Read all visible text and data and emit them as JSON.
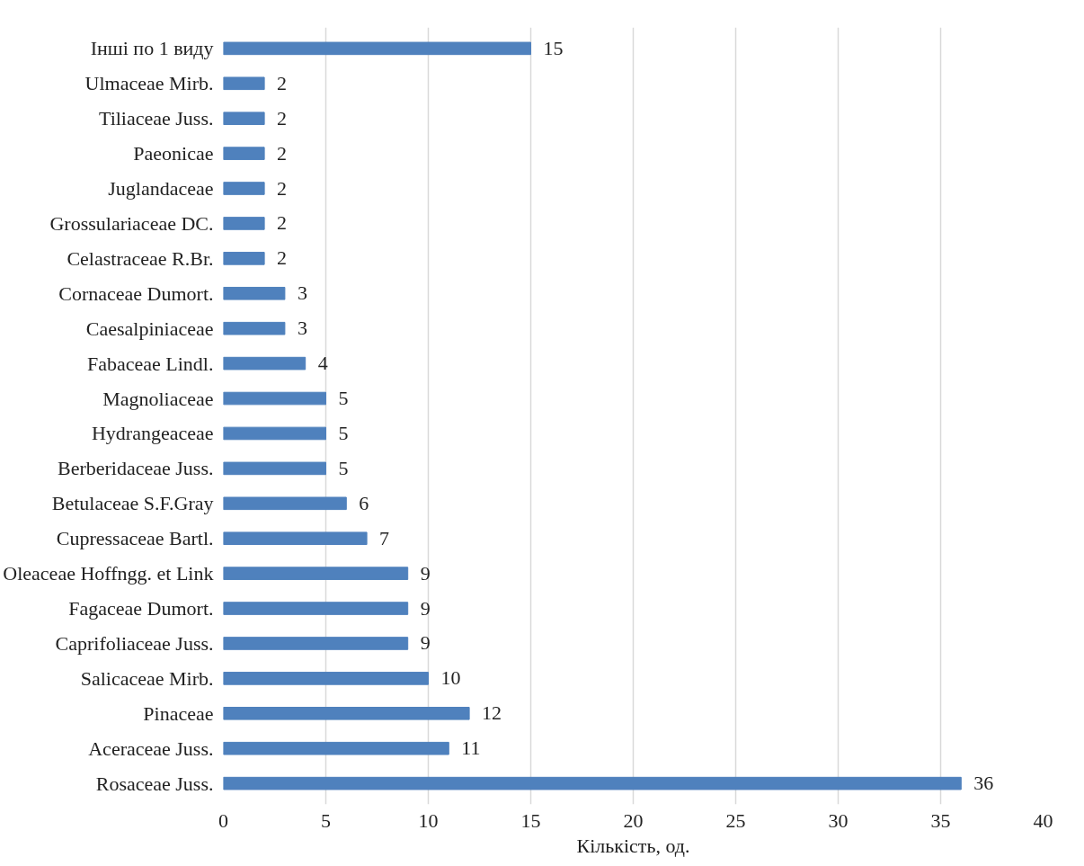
{
  "chart_data": {
    "type": "bar",
    "orientation": "horizontal",
    "xlabel": "Кількість, од.",
    "categories": [
      "Інші по 1 виду",
      "Ulmaceae Mirb.",
      "Tiliaceae Juss.",
      "Paeonicae",
      "Juglandaceae",
      "Grossulariaceae DC.",
      "Celastraceae R.Br.",
      "Cornaceae Dumort.",
      "Caesalpiniaceae",
      "Fabaceae Lindl.",
      "Magnoliaceae",
      "Hydrangeaceae",
      "Berberidaceae Juss.",
      "Betulaceae S.F.Gray",
      "Cupressaceae Bartl.",
      "Oleaceae Hoffngg. et Link",
      "Fagaceae Dumort.",
      "Caprifoliaceae Juss.",
      "Salicaceae Mirb.",
      "Pinaceae",
      "Aceraceae Juss.",
      "Rosaceae Juss."
    ],
    "values": [
      15,
      2,
      2,
      2,
      2,
      2,
      2,
      3,
      3,
      4,
      5,
      5,
      5,
      6,
      7,
      9,
      9,
      9,
      10,
      12,
      11,
      36
    ],
    "color": "#4f81bd",
    "xlim": [
      0,
      40
    ],
    "xticks": [
      0,
      5,
      10,
      15,
      20,
      25,
      30,
      35,
      40
    ],
    "grid": "x",
    "data_labels": true
  }
}
